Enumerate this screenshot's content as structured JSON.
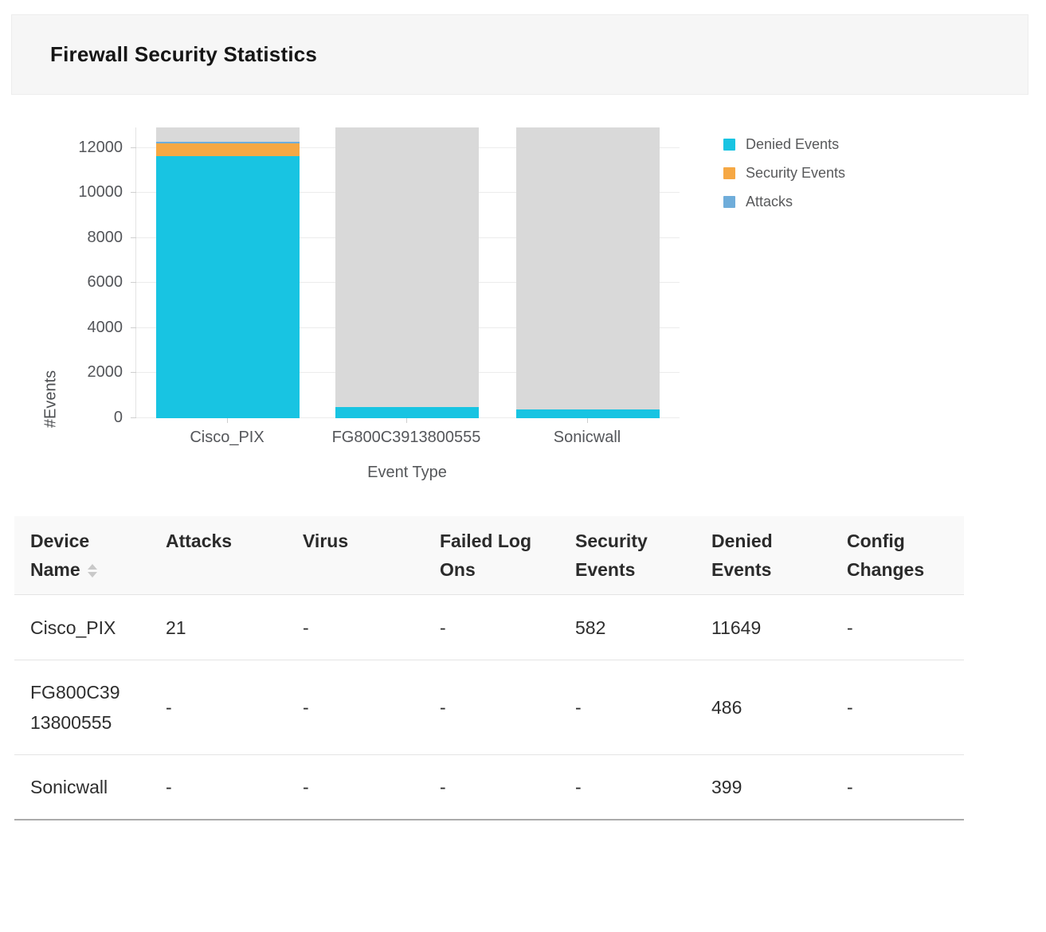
{
  "header": {
    "title": "Firewall Security Statistics"
  },
  "chart_data": {
    "type": "bar",
    "stacked": true,
    "title": "",
    "xlabel": "Event Type",
    "ylabel": "#Events",
    "categories": [
      "Cisco_PIX",
      "FG800C3913800555",
      "Sonicwall"
    ],
    "series": [
      {
        "name": "Denied Events",
        "color": "#18c4e2",
        "values": [
          11649,
          486,
          399
        ]
      },
      {
        "name": "Security Events",
        "color": "#f6a844",
        "values": [
          582,
          0,
          0
        ]
      },
      {
        "name": "Attacks",
        "color": "#6fadda",
        "values": [
          21,
          0,
          0
        ]
      }
    ],
    "yticks": [
      0,
      2000,
      4000,
      6000,
      8000,
      10000,
      12000
    ],
    "ylim": [
      0,
      12918
    ],
    "grid": true,
    "legend_position": "right",
    "background_track": true,
    "track_color": "#d9d9d9"
  },
  "table": {
    "columns": [
      "Device Name",
      "Attacks",
      "Virus",
      "Failed Log Ons",
      "Security Events",
      "Denied Events",
      "Config Changes"
    ],
    "sort_column": "Device Name",
    "rows": [
      [
        "Cisco_PIX",
        "21",
        "-",
        "-",
        "582",
        "11649",
        "-"
      ],
      [
        "FG800C39\n13800555",
        "-",
        "-",
        "-",
        "-",
        "486",
        "-"
      ],
      [
        "Sonicwall",
        "-",
        "-",
        "-",
        "-",
        "399",
        "-"
      ]
    ]
  }
}
